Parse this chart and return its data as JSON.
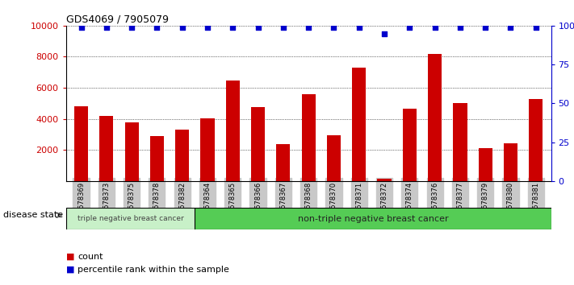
{
  "title": "GDS4069 / 7905079",
  "samples": [
    "GSM678369",
    "GSM678373",
    "GSM678375",
    "GSM678378",
    "GSM678382",
    "GSM678364",
    "GSM678365",
    "GSM678366",
    "GSM678367",
    "GSM678368",
    "GSM678370",
    "GSM678371",
    "GSM678372",
    "GSM678374",
    "GSM678376",
    "GSM678377",
    "GSM678379",
    "GSM678380",
    "GSM678381"
  ],
  "counts": [
    4800,
    4200,
    3750,
    2900,
    3300,
    4050,
    6450,
    4750,
    2350,
    5600,
    2950,
    7300,
    150,
    4650,
    8200,
    5000,
    2100,
    2450,
    5300
  ],
  "percentile_ranks": [
    99,
    99,
    99,
    99,
    99,
    99,
    99,
    99,
    99,
    99,
    99,
    99,
    95,
    99,
    99,
    99,
    99,
    99,
    99
  ],
  "bar_color": "#cc0000",
  "dot_color": "#0000cc",
  "ylim_left": [
    0,
    10000
  ],
  "ylim_right": [
    0,
    100
  ],
  "yticks_left": [
    2000,
    4000,
    6000,
    8000,
    10000
  ],
  "yticks_right": [
    0,
    25,
    50,
    75,
    100
  ],
  "ytick_labels_right": [
    "0",
    "25",
    "50",
    "75",
    "100%"
  ],
  "group1_label": "triple negative breast cancer",
  "group2_label": "non-triple negative breast cancer",
  "group1_count": 5,
  "disease_state_label": "disease state",
  "legend_count": "count",
  "legend_percentile": "percentile rank within the sample",
  "background_color": "#ffffff",
  "tick_label_bg": "#c8c8c8",
  "group1_color": "#c8f0c8",
  "group2_color": "#55cc55"
}
